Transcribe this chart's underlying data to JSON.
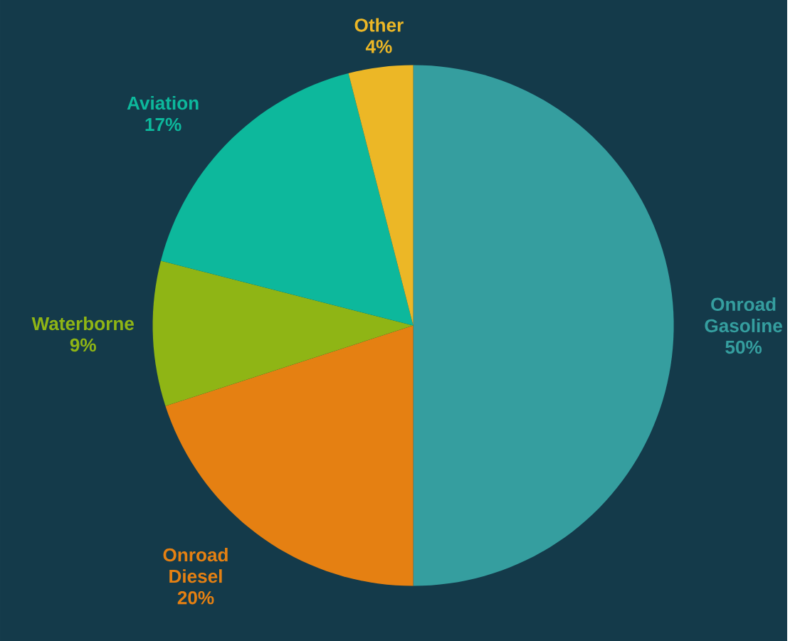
{
  "chart_data": {
    "type": "pie",
    "categories": [
      "Onroad Gasoline",
      "Onroad Diesel",
      "Waterborne",
      "Aviation",
      "Other"
    ],
    "values": [
      50,
      20,
      9,
      17,
      4
    ],
    "colors": [
      "#359e9f",
      "#e58012",
      "#8fb515",
      "#0db89c",
      "#ecb726"
    ],
    "value_labels": [
      "50%",
      "20%",
      "9%",
      "17%",
      "4%"
    ]
  }
}
